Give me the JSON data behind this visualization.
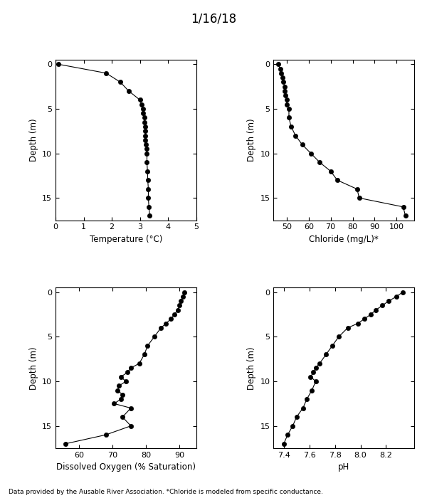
{
  "title": "1/16/18",
  "footnote": "Data provided by the Ausable River Association. *Chloride is modeled from specific conductance.",
  "temp": {
    "depth": [
      0,
      1,
      2,
      3,
      4,
      4.5,
      5,
      5.5,
      6,
      6.5,
      7,
      7.5,
      8,
      8.5,
      9,
      9.5,
      10,
      11,
      12,
      13,
      14,
      15,
      16,
      17
    ],
    "values": [
      0.1,
      1.8,
      2.3,
      2.6,
      3.0,
      3.05,
      3.1,
      3.1,
      3.15,
      3.15,
      3.2,
      3.2,
      3.2,
      3.2,
      3.22,
      3.23,
      3.25,
      3.25,
      3.27,
      3.28,
      3.3,
      3.3,
      3.32,
      3.35
    ],
    "xlabel": "Temperature (°C)",
    "xlim": [
      0,
      5
    ],
    "xticks": [
      0,
      1,
      2,
      3,
      4,
      5
    ],
    "ylim": [
      17.5,
      -0.5
    ],
    "yticks": [
      0,
      5,
      10,
      15
    ]
  },
  "chloride": {
    "depth": [
      0,
      0.5,
      1,
      1.5,
      2,
      2.5,
      3,
      3.5,
      4,
      4.5,
      5,
      6,
      7,
      8,
      9,
      10,
      11,
      12,
      13,
      14,
      15,
      16,
      17
    ],
    "values": [
      46,
      47,
      47.5,
      48,
      48.5,
      49,
      49,
      49.5,
      50,
      50,
      51,
      51,
      52,
      54,
      57,
      61,
      65,
      70,
      73,
      82,
      83,
      103,
      104
    ],
    "xlabel": "Chloride (mg/L)*",
    "xlim": [
      44,
      108
    ],
    "xticks": [
      50,
      60,
      70,
      80,
      90,
      100
    ],
    "ylim": [
      17.5,
      -0.5
    ],
    "yticks": [
      0,
      5,
      10,
      15
    ]
  },
  "do": {
    "depth": [
      0,
      0.5,
      1,
      1.5,
      2,
      2.5,
      3,
      3.5,
      4,
      5,
      6,
      7,
      8,
      8.5,
      9,
      9.5,
      10,
      10.5,
      11,
      11.5,
      12,
      12.5,
      13,
      14,
      15,
      16,
      17
    ],
    "values": [
      91.5,
      91.0,
      90.5,
      90.0,
      89.5,
      88.5,
      87.5,
      86.0,
      84.5,
      82.5,
      80.5,
      79.5,
      78.0,
      75.5,
      74.5,
      72.5,
      74.0,
      72.0,
      71.5,
      73.0,
      72.5,
      70.5,
      75.5,
      73.0,
      75.5,
      68.0,
      56.0
    ],
    "xlabel": "Dissolved Oxygen (% Saturation)",
    "xlim": [
      53,
      95
    ],
    "xticks": [
      60,
      70,
      80,
      90
    ],
    "ylim": [
      17.5,
      -0.5
    ],
    "yticks": [
      0,
      5,
      10,
      15
    ]
  },
  "ph": {
    "depth": [
      0,
      0.5,
      1,
      1.5,
      2,
      2.5,
      3,
      3.5,
      4,
      5,
      6,
      7,
      8,
      8.5,
      9,
      9.5,
      10,
      11,
      12,
      13,
      14,
      15,
      16,
      17
    ],
    "values": [
      8.33,
      8.28,
      8.22,
      8.17,
      8.12,
      8.08,
      8.03,
      7.98,
      7.9,
      7.83,
      7.78,
      7.73,
      7.68,
      7.65,
      7.63,
      7.61,
      7.65,
      7.62,
      7.58,
      7.55,
      7.5,
      7.47,
      7.43,
      7.4
    ],
    "xlabel": "pH",
    "xlim": [
      7.32,
      8.42
    ],
    "xticks": [
      7.4,
      7.6,
      7.8,
      8.0,
      8.2
    ],
    "ylim": [
      17.5,
      -0.5
    ],
    "yticks": [
      0,
      5,
      10,
      15
    ]
  },
  "ylabel": "Depth (m)",
  "line_color": "black",
  "marker": "o",
  "markersize": 4.5,
  "markerfacecolor": "black",
  "linewidth": 0.8
}
